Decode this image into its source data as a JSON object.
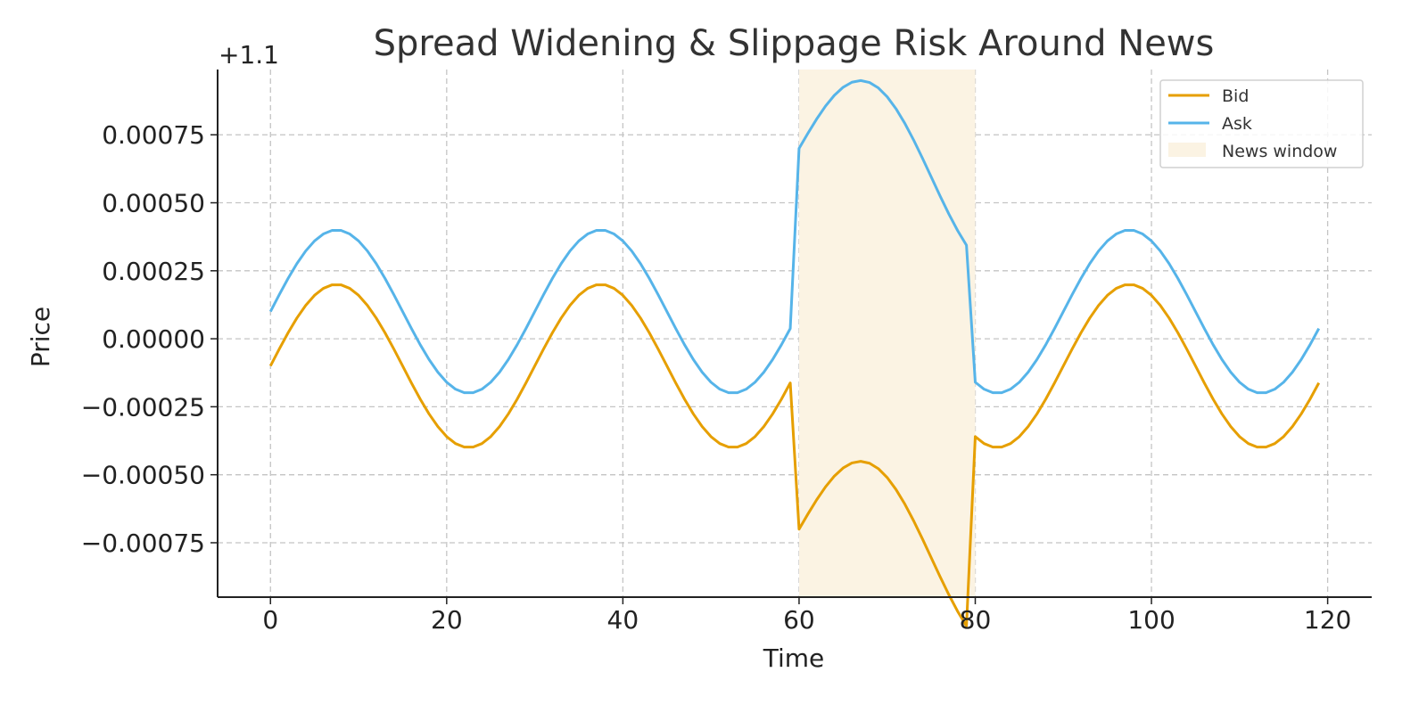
{
  "chart_data": {
    "type": "line",
    "title": "Spread Widening & Slippage Risk Around News",
    "xlabel": "Time",
    "ylabel": "Price",
    "offset_label": "+1.1",
    "offset": 1.1,
    "xlim": [
      -6,
      125
    ],
    "ylim": [
      -0.00095,
      0.00099
    ],
    "x_ticks": [
      0,
      20,
      40,
      60,
      80,
      100,
      120
    ],
    "x_tick_labels": [
      "0",
      "20",
      "40",
      "60",
      "80",
      "100",
      "120"
    ],
    "y_ticks": [
      0.00075,
      0.0005,
      0.00025,
      0.0,
      -0.00025,
      -0.0005,
      -0.00075
    ],
    "y_tick_labels": [
      "0.00075",
      "0.00050",
      "0.00025",
      "0.00000",
      "−0.00025",
      "−0.00050",
      "−0.00075"
    ],
    "grid": true,
    "legend_position": "top-right",
    "x_range": {
      "start": 0,
      "end": 119,
      "step": 1
    },
    "series": [
      {
        "name": "Bid",
        "color": "#E69F00",
        "base": -0.0001,
        "amplitude": 0.0003,
        "period": 30,
        "news_shift": -0.0006,
        "news_extra_slope": -7e-06
      },
      {
        "name": "Ask",
        "color": "#56B4E9",
        "base": 0.0001,
        "amplitude": 0.0003,
        "period": 30,
        "news_shift": 0.0006,
        "news_extra_slope": -7e-06
      }
    ],
    "news_window": {
      "label": "News window",
      "x_start": 60,
      "x_end": 80,
      "color": "#FBF3E3"
    }
  }
}
